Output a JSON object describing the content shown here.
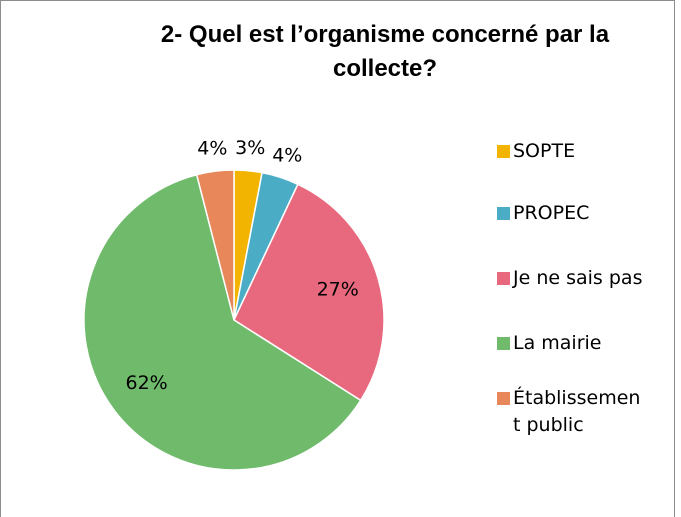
{
  "chart_data": {
    "type": "pie",
    "title": "2- Quel est l’organisme concerné  par la collecte?",
    "categories": [
      "SOPTE",
      "PROPEC",
      "Je ne sais pas",
      "La mairie",
      "Établissement public"
    ],
    "values": [
      3,
      4,
      27,
      62,
      4
    ],
    "value_labels": [
      "3%",
      "4%",
      "27%",
      "62%",
      "4%"
    ],
    "colors": [
      "#f2b400",
      "#4bacc6",
      "#e8697d",
      "#6fba6b",
      "#e8875a"
    ],
    "legend": "right"
  }
}
